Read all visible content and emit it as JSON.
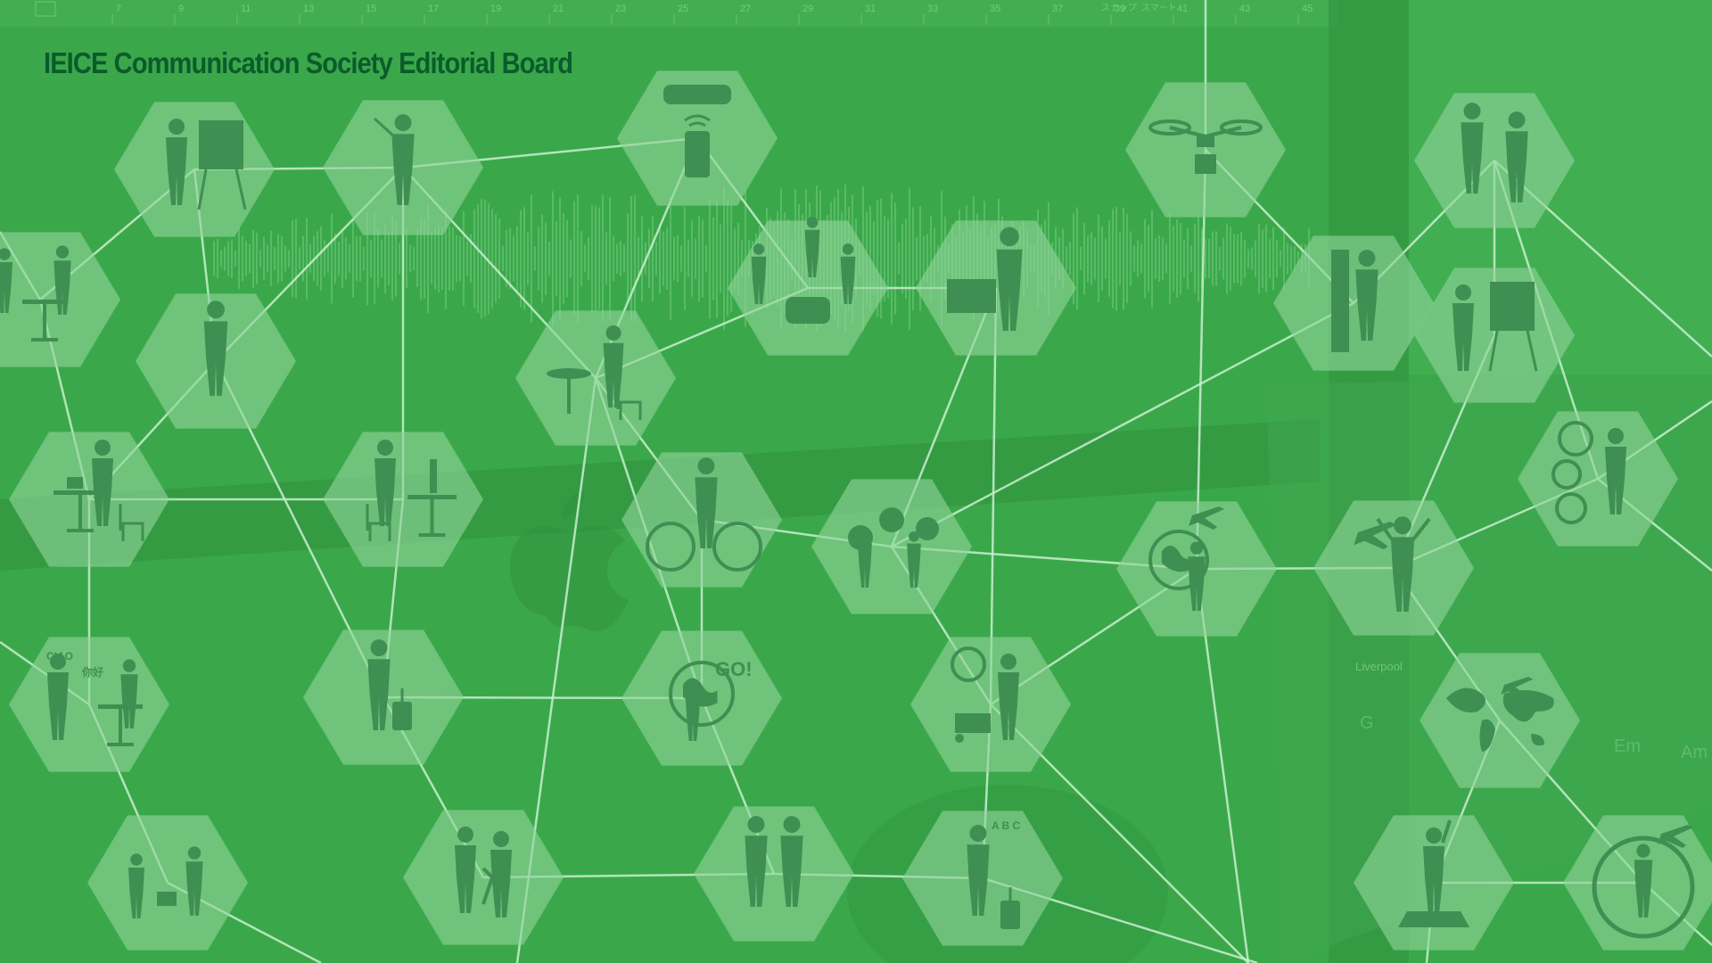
{
  "header": {
    "title": "IEICE Communication Society Editorial Board"
  },
  "colors": {
    "background": "#3aa84a",
    "background_dark": "#2f8f3e",
    "hexagon_fill": "#8fd49a",
    "silhouette": "#3f8f52",
    "network_line": "#c9efcf",
    "title": "#0b5b2c"
  },
  "ruler": {
    "numbers": [
      "7",
      "9",
      "11",
      "13",
      "15",
      "17",
      "19",
      "21",
      "23",
      "25",
      "27",
      "29",
      "31",
      "33",
      "35",
      "37",
      "39",
      "41",
      "43",
      "45"
    ]
  },
  "hexagon_icons": [
    {
      "icon": "presenter-board-icon"
    },
    {
      "icon": "woman-pointer-icon"
    },
    {
      "icon": "taxi-phone-icon"
    },
    {
      "icon": "drone-delivery-icon"
    },
    {
      "icon": "business-handshake-icon"
    },
    {
      "icon": "meeting-table-icon"
    },
    {
      "icon": "standing-man-icon"
    },
    {
      "icon": "ride-share-icon"
    },
    {
      "icon": "businessman-map-icon"
    },
    {
      "icon": "bookshelf-reader-icon"
    },
    {
      "icon": "woman-presenter-icon"
    },
    {
      "icon": "cafe-phone-icon"
    },
    {
      "icon": "travel-services-icon"
    },
    {
      "icon": "laptop-worker-icon"
    },
    {
      "icon": "headset-operator-icon"
    },
    {
      "icon": "cyclist-icon"
    },
    {
      "icon": "multilingual-chat-icon"
    },
    {
      "icon": "travel-agent-icon"
    },
    {
      "icon": "jumping-traveler-icon"
    },
    {
      "icon": "translation-dialog-icon"
    },
    {
      "icon": "traveler-luggage-icon"
    },
    {
      "icon": "world-map-traveler-icon"
    },
    {
      "icon": "uk-porter-icon"
    },
    {
      "icon": "global-doctor-icon"
    },
    {
      "icon": "exchange-gift-icon"
    },
    {
      "icon": "go-globe-icon"
    },
    {
      "icon": "tourist-couple-icon"
    },
    {
      "icon": "abc-traveler-icon"
    },
    {
      "icon": "statue-of-liberty-icon"
    },
    {
      "icon": "flight-reader-icon"
    }
  ],
  "icon_text": {
    "ciao": "CIAO",
    "nihao": "你好",
    "go": "GO!",
    "abc": "A B C"
  },
  "background_ui_text": {
    "pane_label": "スナップ",
    "pane_value": "スマート",
    "track_label": "Liverpool",
    "key_g": "G",
    "key_em": "Em",
    "key_am": "Am"
  }
}
